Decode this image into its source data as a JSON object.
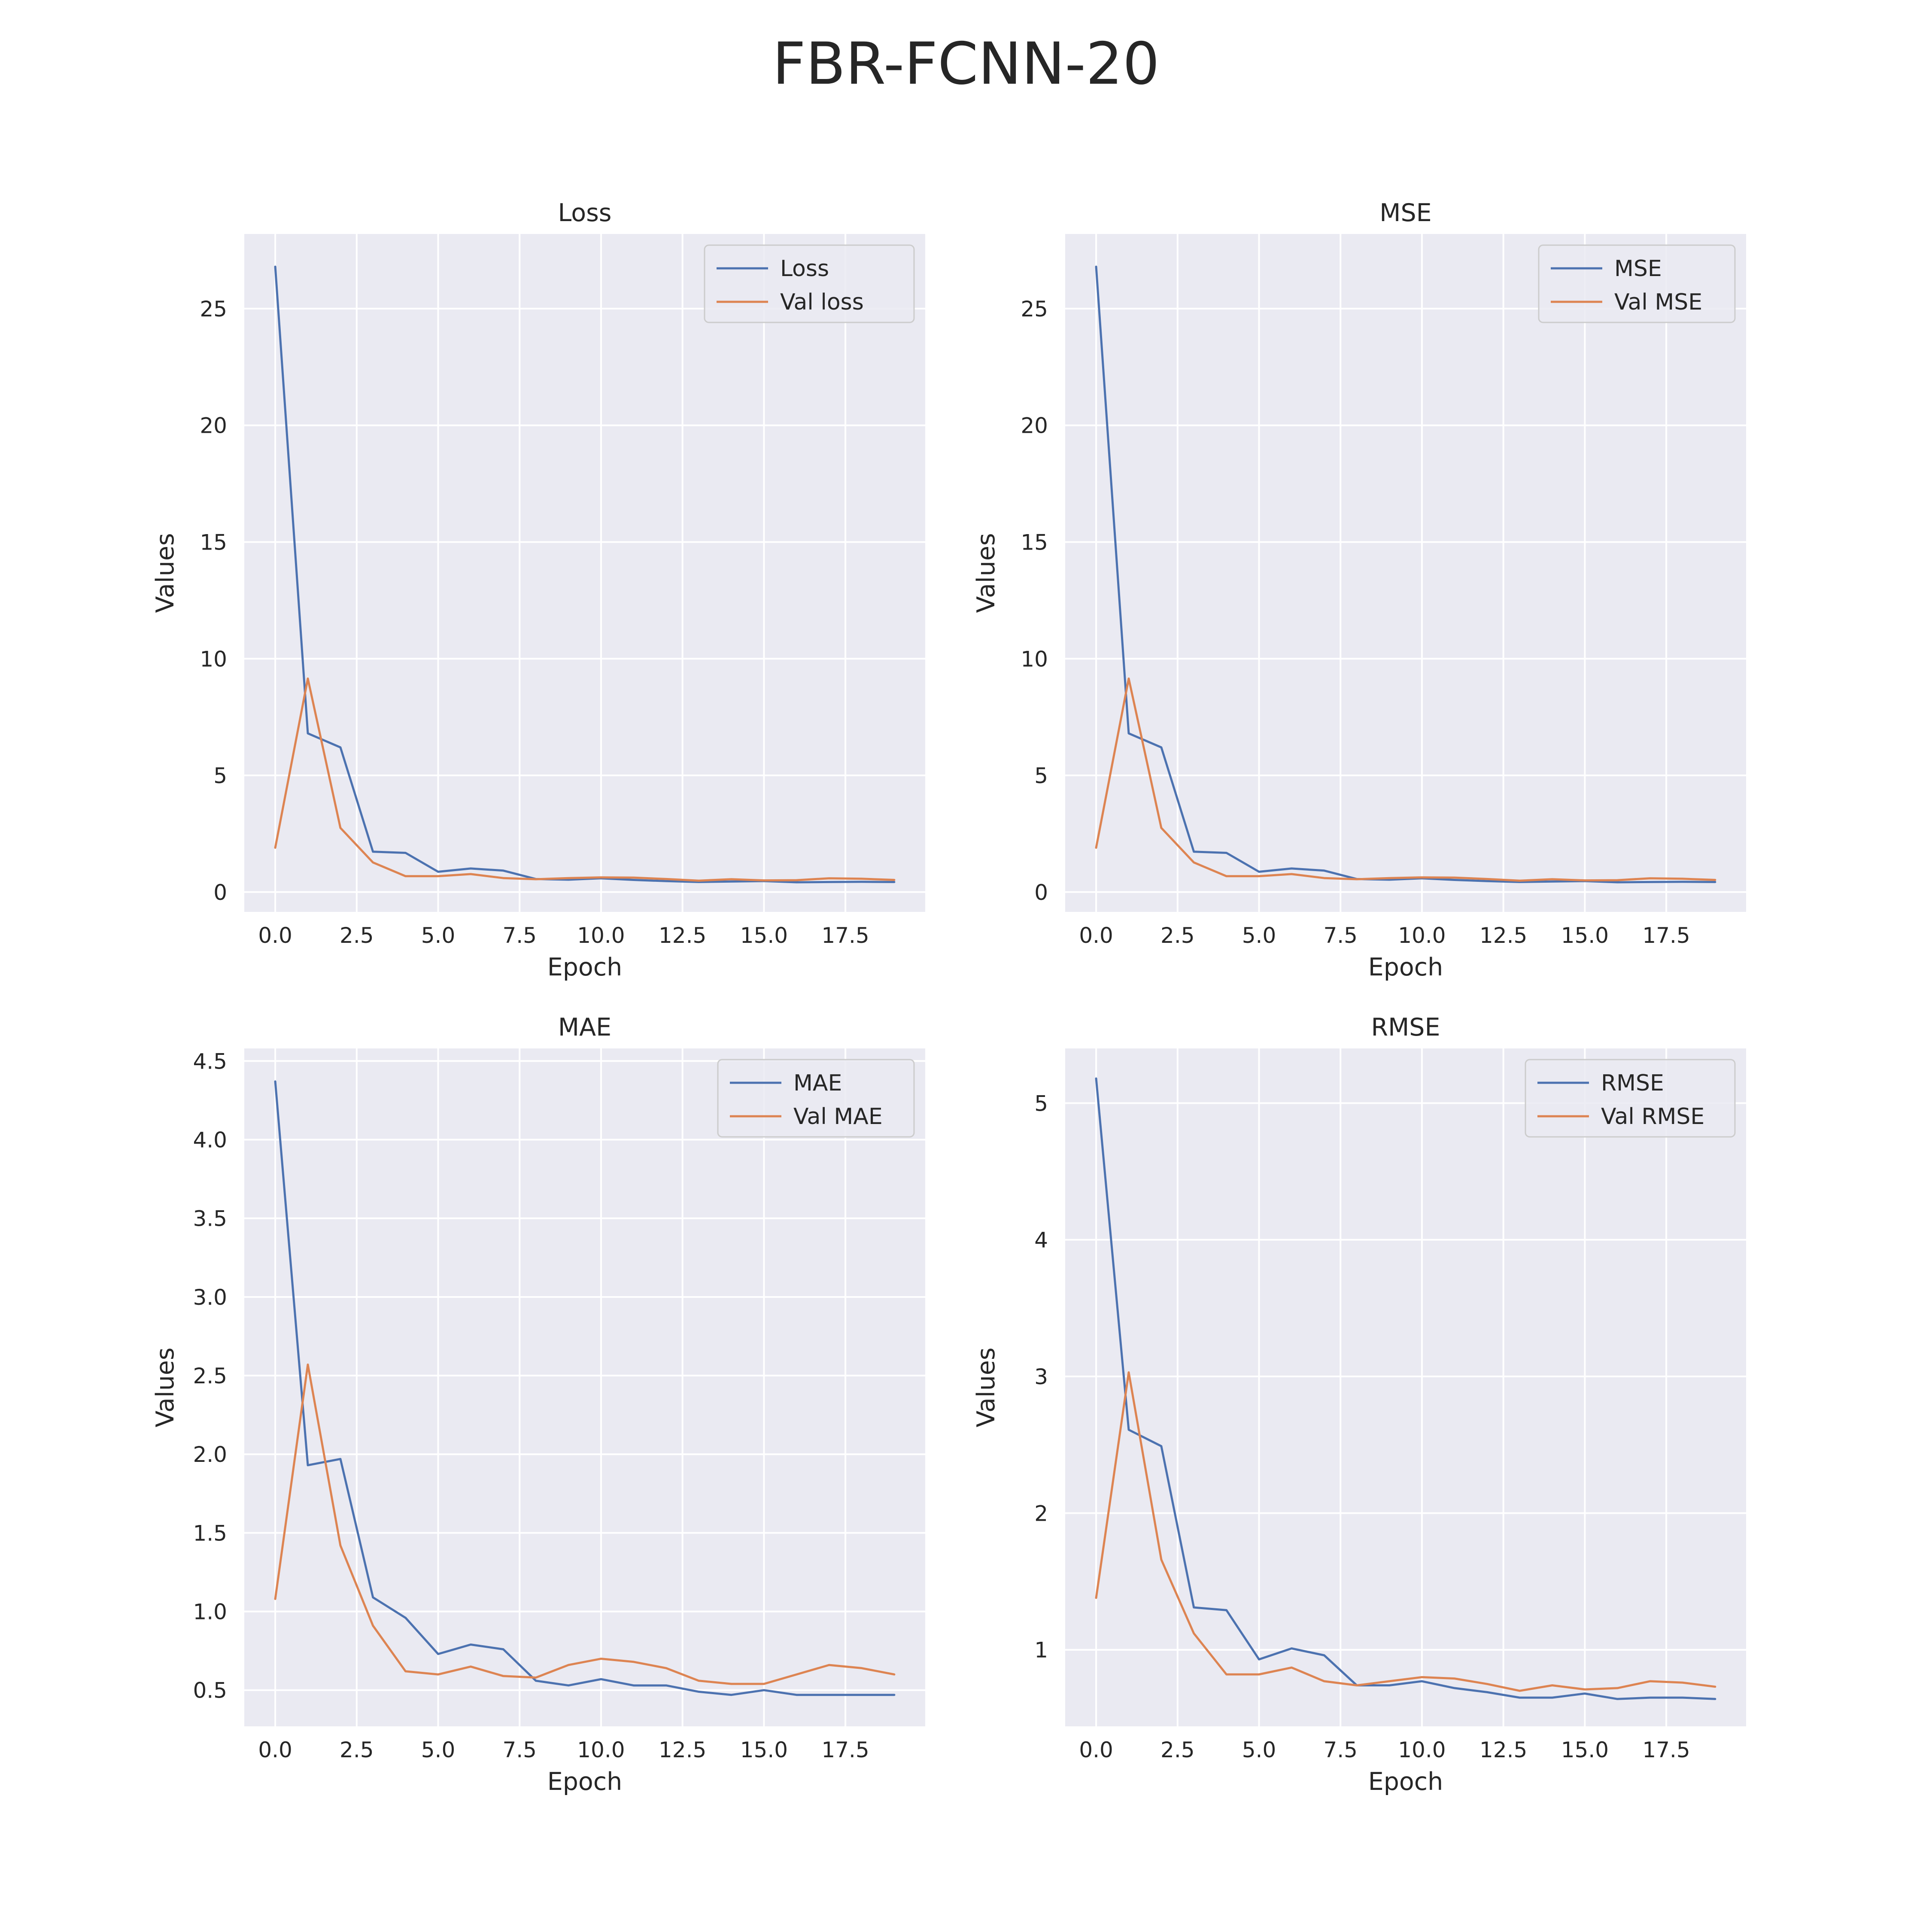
{
  "title": "FBR-FCNN-20",
  "colors": {
    "train": "#4c72b0",
    "val": "#dd8452",
    "background": "#eaeaf2",
    "grid": "#ffffff"
  },
  "chart_data": [
    {
      "type": "line",
      "title": "Loss",
      "xlabel": "Epoch",
      "ylabel": "Values",
      "xlim": [
        -0.95,
        19.95
      ],
      "ylim": [
        -0.85,
        28.2
      ],
      "xticks": [
        "0.0",
        "2.5",
        "5.0",
        "7.5",
        "10.0",
        "12.5",
        "15.0",
        "17.5"
      ],
      "yticks": [
        "0",
        "5",
        "10",
        "15",
        "20",
        "25"
      ],
      "grid": true,
      "legend": "top-right",
      "x": [
        0,
        1,
        2,
        3,
        4,
        5,
        6,
        7,
        8,
        9,
        10,
        11,
        12,
        13,
        14,
        15,
        16,
        17,
        18,
        19
      ],
      "series": [
        {
          "name": "Loss",
          "color": "#4c72b0",
          "values": [
            26.8,
            6.8,
            6.2,
            1.73,
            1.68,
            0.87,
            1.01,
            0.92,
            0.56,
            0.53,
            0.59,
            0.52,
            0.47,
            0.43,
            0.45,
            0.47,
            0.42,
            0.43,
            0.44,
            0.43
          ]
        },
        {
          "name": "Val loss",
          "color": "#dd8452",
          "values": [
            1.9,
            9.15,
            2.75,
            1.27,
            0.68,
            0.68,
            0.77,
            0.6,
            0.55,
            0.6,
            0.63,
            0.62,
            0.56,
            0.49,
            0.55,
            0.5,
            0.51,
            0.59,
            0.57,
            0.52
          ]
        }
      ]
    },
    {
      "type": "line",
      "title": "MSE",
      "xlabel": "Epoch",
      "ylabel": "Values",
      "xlim": [
        -0.95,
        19.95
      ],
      "ylim": [
        -0.85,
        28.2
      ],
      "xticks": [
        "0.0",
        "2.5",
        "5.0",
        "7.5",
        "10.0",
        "12.5",
        "15.0",
        "17.5"
      ],
      "yticks": [
        "0",
        "5",
        "10",
        "15",
        "20",
        "25"
      ],
      "grid": true,
      "legend": "top-right",
      "x": [
        0,
        1,
        2,
        3,
        4,
        5,
        6,
        7,
        8,
        9,
        10,
        11,
        12,
        13,
        14,
        15,
        16,
        17,
        18,
        19
      ],
      "series": [
        {
          "name": "MSE",
          "color": "#4c72b0",
          "values": [
            26.8,
            6.8,
            6.2,
            1.73,
            1.68,
            0.87,
            1.01,
            0.92,
            0.56,
            0.53,
            0.59,
            0.52,
            0.47,
            0.43,
            0.45,
            0.47,
            0.42,
            0.43,
            0.44,
            0.43
          ]
        },
        {
          "name": "Val MSE",
          "color": "#dd8452",
          "values": [
            1.9,
            9.15,
            2.75,
            1.27,
            0.68,
            0.68,
            0.77,
            0.6,
            0.55,
            0.6,
            0.63,
            0.62,
            0.56,
            0.49,
            0.55,
            0.5,
            0.51,
            0.59,
            0.57,
            0.52
          ]
        }
      ]
    },
    {
      "type": "line",
      "title": "MAE",
      "xlabel": "Epoch",
      "ylabel": "Values",
      "xlim": [
        -0.95,
        19.95
      ],
      "ylim": [
        0.27,
        4.58
      ],
      "xticks": [
        "0.0",
        "2.5",
        "5.0",
        "7.5",
        "10.0",
        "12.5",
        "15.0",
        "17.5"
      ],
      "yticks": [
        "0.5",
        "1.0",
        "1.5",
        "2.0",
        "2.5",
        "3.0",
        "3.5",
        "4.0",
        "4.5"
      ],
      "grid": true,
      "legend": "top-right",
      "x": [
        0,
        1,
        2,
        3,
        4,
        5,
        6,
        7,
        8,
        9,
        10,
        11,
        12,
        13,
        14,
        15,
        16,
        17,
        18,
        19
      ],
      "series": [
        {
          "name": "MAE",
          "color": "#4c72b0",
          "values": [
            4.37,
            1.93,
            1.97,
            1.09,
            0.96,
            0.73,
            0.79,
            0.76,
            0.56,
            0.53,
            0.57,
            0.53,
            0.53,
            0.49,
            0.47,
            0.5,
            0.47,
            0.47,
            0.47,
            0.47
          ]
        },
        {
          "name": "Val MAE",
          "color": "#dd8452",
          "values": [
            1.08,
            2.57,
            1.42,
            0.91,
            0.62,
            0.6,
            0.65,
            0.59,
            0.58,
            0.66,
            0.7,
            0.68,
            0.64,
            0.56,
            0.54,
            0.54,
            0.6,
            0.66,
            0.64,
            0.6
          ]
        }
      ]
    },
    {
      "type": "line",
      "title": "RMSE",
      "xlabel": "Epoch",
      "ylabel": "Values",
      "xlim": [
        -0.95,
        19.95
      ],
      "ylim": [
        0.44,
        5.4
      ],
      "xticks": [
        "0.0",
        "2.5",
        "5.0",
        "7.5",
        "10.0",
        "12.5",
        "15.0",
        "17.5"
      ],
      "yticks": [
        "1",
        "2",
        "3",
        "4",
        "5"
      ],
      "grid": true,
      "legend": "top-right",
      "x": [
        0,
        1,
        2,
        3,
        4,
        5,
        6,
        7,
        8,
        9,
        10,
        11,
        12,
        13,
        14,
        15,
        16,
        17,
        18,
        19
      ],
      "series": [
        {
          "name": "RMSE",
          "color": "#4c72b0",
          "values": [
            5.18,
            2.61,
            2.49,
            1.31,
            1.29,
            0.93,
            1.01,
            0.96,
            0.74,
            0.74,
            0.77,
            0.72,
            0.69,
            0.65,
            0.65,
            0.68,
            0.64,
            0.65,
            0.65,
            0.64
          ]
        },
        {
          "name": "Val RMSE",
          "color": "#dd8452",
          "values": [
            1.38,
            3.03,
            1.66,
            1.12,
            0.82,
            0.82,
            0.87,
            0.77,
            0.74,
            0.77,
            0.8,
            0.79,
            0.75,
            0.7,
            0.74,
            0.71,
            0.72,
            0.77,
            0.76,
            0.73
          ]
        }
      ]
    }
  ]
}
